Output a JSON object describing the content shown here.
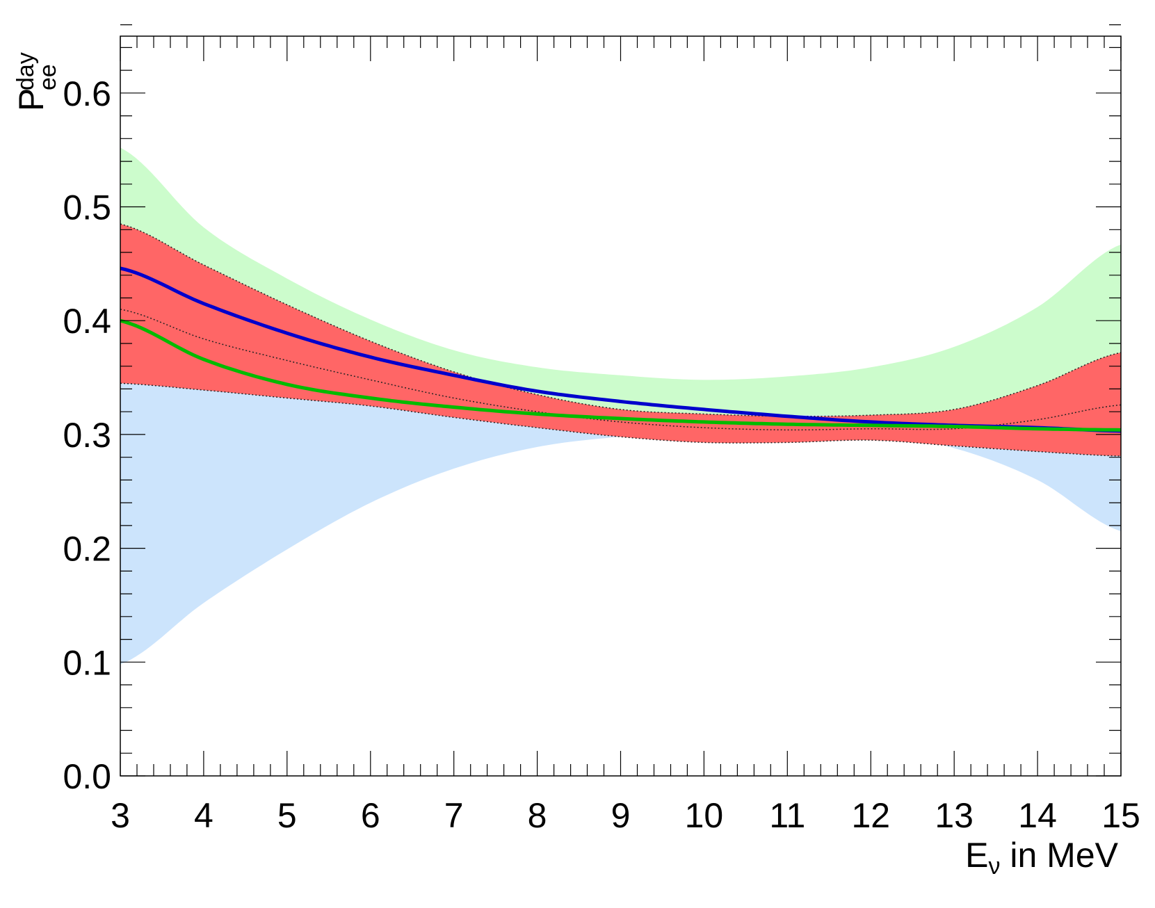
{
  "chart_data": {
    "type": "area",
    "title": "",
    "xlabel": {
      "main": "E",
      "sub": "ν",
      "suffix": " in MeV"
    },
    "ylabel": {
      "main": "P",
      "sub": "ee",
      "sup": "day"
    },
    "xlim": [
      3,
      15
    ],
    "ylim": [
      0,
      0.65
    ],
    "x_ticks": [
      "3",
      "4",
      "5",
      "6",
      "7",
      "8",
      "9",
      "10",
      "11",
      "12",
      "13",
      "14",
      "15"
    ],
    "y_ticks": [
      "0.0",
      "0.1",
      "0.2",
      "0.3",
      "0.4",
      "0.5",
      "0.6"
    ],
    "grid": false,
    "colors": {
      "green_band": "#ccfccc",
      "blue_band": "#cce4fc",
      "overlap": "#b4f8dc",
      "red_band": "#ff6666",
      "blue_line": "#0000cc",
      "green_line": "#00bb00",
      "dotted": "#222222"
    },
    "x": [
      3,
      4,
      5,
      6,
      7,
      8,
      9,
      10,
      11,
      12,
      13,
      14,
      15
    ],
    "green_band": {
      "upper": [
        0.552,
        0.482,
        0.437,
        0.401,
        0.374,
        0.359,
        0.352,
        0.348,
        0.351,
        0.359,
        0.377,
        0.412,
        0.467
      ],
      "lower": [
        0.345,
        0.342,
        0.336,
        0.331,
        0.327,
        0.322,
        0.318,
        0.313,
        0.309,
        0.306,
        0.305,
        0.303,
        0.302
      ]
    },
    "blue_band": {
      "upper": [
        0.345,
        0.342,
        0.337,
        0.33,
        0.323,
        0.32,
        0.318,
        0.317,
        0.317,
        0.316,
        0.314,
        0.309,
        0.302
      ],
      "lower": [
        0.098,
        0.152,
        0.199,
        0.24,
        0.27,
        0.289,
        0.298,
        0.302,
        0.303,
        0.301,
        0.288,
        0.26,
        0.215
      ]
    },
    "red_band": {
      "upper": [
        0.485,
        0.449,
        0.414,
        0.382,
        0.355,
        0.335,
        0.322,
        0.318,
        0.316,
        0.317,
        0.322,
        0.343,
        0.372
      ],
      "lower": [
        0.345,
        0.339,
        0.332,
        0.325,
        0.315,
        0.306,
        0.298,
        0.293,
        0.293,
        0.295,
        0.29,
        0.285,
        0.281
      ]
    },
    "red_center": [
      0.41,
      0.384,
      0.365,
      0.348,
      0.332,
      0.32,
      0.311,
      0.306,
      0.304,
      0.305,
      0.305,
      0.313,
      0.326
    ],
    "blue_line": [
      0.446,
      0.415,
      0.389,
      0.368,
      0.352,
      0.338,
      0.329,
      0.322,
      0.316,
      0.311,
      0.308,
      0.306,
      0.303
    ],
    "green_line": [
      0.4,
      0.366,
      0.344,
      0.332,
      0.324,
      0.318,
      0.314,
      0.311,
      0.309,
      0.308,
      0.307,
      0.305,
      0.304
    ]
  }
}
